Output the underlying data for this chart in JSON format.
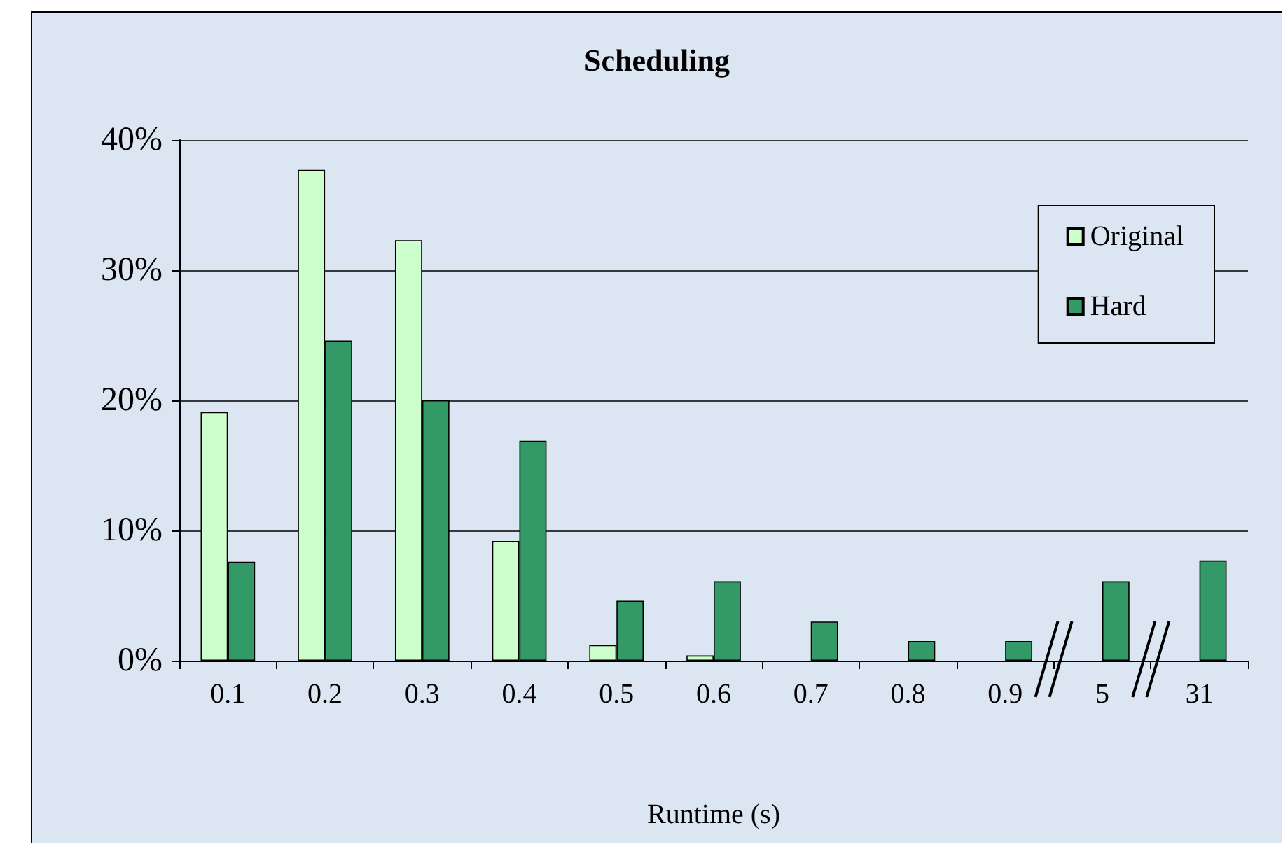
{
  "chart_data": {
    "type": "bar",
    "title": "Scheduling",
    "xlabel": "Runtime (s)",
    "categories": [
      "0.1",
      "0.2",
      "0.3",
      "0.4",
      "0.5",
      "0.6",
      "0.7",
      "0.8",
      "0.9",
      "5",
      "31"
    ],
    "series": [
      {
        "name": "Original",
        "color": "#ccffcc",
        "values": [
          19.1,
          37.7,
          32.3,
          9.2,
          1.2,
          0.4,
          0,
          0,
          0,
          0,
          0
        ]
      },
      {
        "name": "Hard",
        "color": "#339966",
        "values": [
          7.6,
          24.6,
          20.0,
          16.9,
          4.6,
          6.1,
          3.0,
          1.5,
          1.5,
          6.1,
          7.7
        ]
      }
    ],
    "ylim": [
      0,
      40
    ],
    "yticks": [
      {
        "value": 0,
        "label": "0%"
      },
      {
        "value": 10,
        "label": "10%"
      },
      {
        "value": 20,
        "label": "20%"
      },
      {
        "value": 30,
        "label": "30%"
      },
      {
        "value": 40,
        "label": "40%"
      }
    ],
    "grid": "y",
    "legend": "top right"
  }
}
